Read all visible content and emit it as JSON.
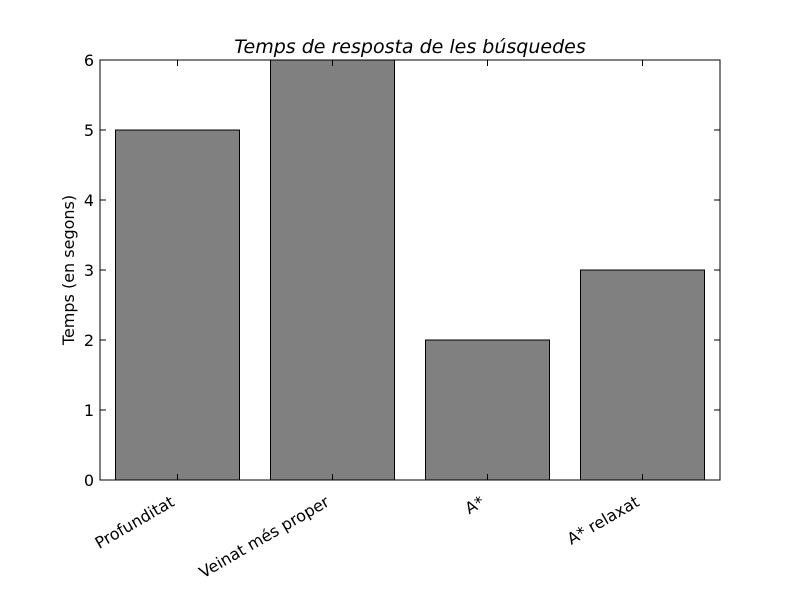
{
  "chart_data": {
    "type": "bar",
    "title": "Temps de resposta de les búsquedes",
    "xlabel": "",
    "ylabel": "Temps (en segons)",
    "categories": [
      "Profunditat",
      "Veinat més proper",
      "A*",
      "A* relaxat"
    ],
    "values": [
      5,
      6,
      2,
      3
    ],
    "ylim": [
      0,
      6
    ],
    "yticks": [
      0,
      1,
      2,
      3,
      4,
      5,
      6
    ],
    "bar_color": "#808080",
    "edge_color": "#000000",
    "grid": false,
    "legend": "none"
  }
}
